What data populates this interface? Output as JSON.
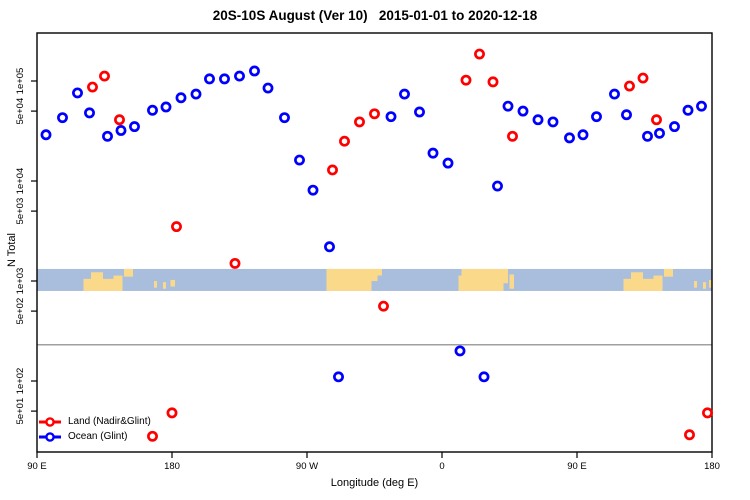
{
  "chart_data": {
    "type": "scatter",
    "title": "20S-10S August (Ver 10)   2015-01-01 to 2020-12-18",
    "xlabel": "Longitude (deg E)",
    "ylabel": "N Total",
    "x_axis": {
      "unit": "deg E (wrapping eastward from 90E through 180, 90W, 0, 90E to 180)",
      "range_deg": [
        90,
        540
      ],
      "ticks": [
        {
          "label": "90 E",
          "lon": 90
        },
        {
          "label": "180",
          "lon": 180
        },
        {
          "label": "90 W",
          "lon": 270
        },
        {
          "label": "0",
          "lon": 360
        },
        {
          "label": "90 E",
          "lon": 450
        },
        {
          "label": "180",
          "lon": 540
        }
      ]
    },
    "y_axis": {
      "scale": "log10",
      "range": [
        18,
        320000
      ],
      "ticks": [
        {
          "label": "1e+05",
          "value": 100000
        },
        {
          "label": "5e+04",
          "value": 50000
        },
        {
          "label": "1e+04",
          "value": 10000
        },
        {
          "label": "5e+03",
          "value": 5000
        },
        {
          "label": "1e+03",
          "value": 1000
        },
        {
          "label": "5e+02",
          "value": 500
        },
        {
          "label": "1e+02",
          "value": 100
        },
        {
          "label": "5e+01",
          "value": 50
        }
      ]
    },
    "grid": "off",
    "legend_position": "bottom-left inside plot",
    "series": [
      {
        "name": "Land (Nadir&Glint)",
        "color": "#ff0000",
        "marker": "open-circle",
        "points": [
          [
            127,
            87000
          ],
          [
            135,
            112000
          ],
          [
            145,
            41000
          ],
          [
            167,
            28
          ],
          [
            180,
            48
          ],
          [
            183,
            3500
          ],
          [
            222,
            1500
          ],
          [
            287,
            12900
          ],
          [
            295,
            25000
          ],
          [
            305,
            39000
          ],
          [
            315,
            47000
          ],
          [
            321,
            560
          ],
          [
            376,
            102000
          ],
          [
            385,
            186000
          ],
          [
            394,
            98000
          ],
          [
            407,
            28000
          ],
          [
            485,
            89000
          ],
          [
            494,
            107000
          ],
          [
            503,
            41000
          ],
          [
            525,
            29
          ],
          [
            537,
            48
          ]
        ]
      },
      {
        "name": "Ocean (Glint)",
        "color": "#0000ff",
        "marker": "open-circle",
        "points": [
          [
            96,
            29000
          ],
          [
            107,
            43000
          ],
          [
            117,
            76000
          ],
          [
            125,
            48000
          ],
          [
            137,
            28000
          ],
          [
            146,
            32000
          ],
          [
            155,
            35000
          ],
          [
            167,
            51000
          ],
          [
            176,
            55000
          ],
          [
            186,
            68000
          ],
          [
            196,
            74000
          ],
          [
            205,
            105000
          ],
          [
            215,
            105000
          ],
          [
            225,
            112000
          ],
          [
            235,
            126000
          ],
          [
            244,
            85000
          ],
          [
            255,
            43000
          ],
          [
            265,
            16200
          ],
          [
            274,
            8100
          ],
          [
            285,
            2200
          ],
          [
            291,
            110
          ],
          [
            326,
            44000
          ],
          [
            335,
            74000
          ],
          [
            345,
            49000
          ],
          [
            354,
            19000
          ],
          [
            364,
            15100
          ],
          [
            372,
            200
          ],
          [
            388,
            110
          ],
          [
            397,
            8900
          ],
          [
            404,
            56000
          ],
          [
            414,
            50000
          ],
          [
            424,
            41000
          ],
          [
            434,
            39000
          ],
          [
            445,
            27000
          ],
          [
            454,
            29000
          ],
          [
            463,
            44000
          ],
          [
            475,
            74000
          ],
          [
            483,
            46000
          ],
          [
            497,
            28000
          ],
          [
            505,
            30000
          ],
          [
            515,
            35000
          ],
          [
            524,
            51000
          ],
          [
            533,
            56000
          ]
        ]
      }
    ],
    "legend": {
      "items": [
        {
          "label": "Land (Nadir&Glint)",
          "color": "#ff0000"
        },
        {
          "label": "Ocean (Glint)",
          "color": "#0000ff"
        }
      ]
    },
    "ref_line": {
      "value": 230,
      "color": "#808080"
    },
    "map_strip": {
      "description": "world coastline band for latitude 20S-10S drawn across the plot",
      "top_value": 1320,
      "bottom_value": 795,
      "ocean_color": "#a9bedd",
      "land_color": "#fbd98b",
      "land_patches": [
        {
          "from": 121,
          "to": 147,
          "t": 0.45,
          "b": 1
        },
        {
          "from": 126,
          "to": 134,
          "t": 0.15,
          "b": 1
        },
        {
          "from": 141,
          "to": 147,
          "t": 0.3,
          "b": 1
        },
        {
          "from": 148,
          "to": 154,
          "t": 0,
          "b": 0.35
        },
        {
          "from": 168,
          "to": 170,
          "t": 0.55,
          "b": 0.85
        },
        {
          "from": 174,
          "to": 176,
          "t": 0.6,
          "b": 0.9
        },
        {
          "from": 179,
          "to": 182,
          "t": 0.5,
          "b": 0.8
        },
        {
          "from": 283,
          "to": 313,
          "t": 0,
          "b": 1
        },
        {
          "from": 313,
          "to": 317,
          "t": 0,
          "b": 0.55
        },
        {
          "from": 317,
          "to": 320,
          "t": 0,
          "b": 0.3
        },
        {
          "from": 371,
          "to": 373,
          "t": 0.3,
          "b": 1
        },
        {
          "from": 373,
          "to": 401,
          "t": 0,
          "b": 1
        },
        {
          "from": 401,
          "to": 404,
          "t": 0,
          "b": 0.65
        },
        {
          "from": 405,
          "to": 408,
          "t": 0.25,
          "b": 0.9
        },
        {
          "from": 481,
          "to": 507,
          "t": 0.45,
          "b": 1
        },
        {
          "from": 486,
          "to": 494,
          "t": 0.15,
          "b": 1
        },
        {
          "from": 501,
          "to": 507,
          "t": 0.3,
          "b": 1
        },
        {
          "from": 508,
          "to": 514,
          "t": 0,
          "b": 0.35
        },
        {
          "from": 528,
          "to": 530,
          "t": 0.55,
          "b": 0.85
        },
        {
          "from": 534,
          "to": 536,
          "t": 0.6,
          "b": 0.9
        },
        {
          "from": 538,
          "to": 540,
          "t": 0.5,
          "b": 0.85
        }
      ]
    }
  }
}
